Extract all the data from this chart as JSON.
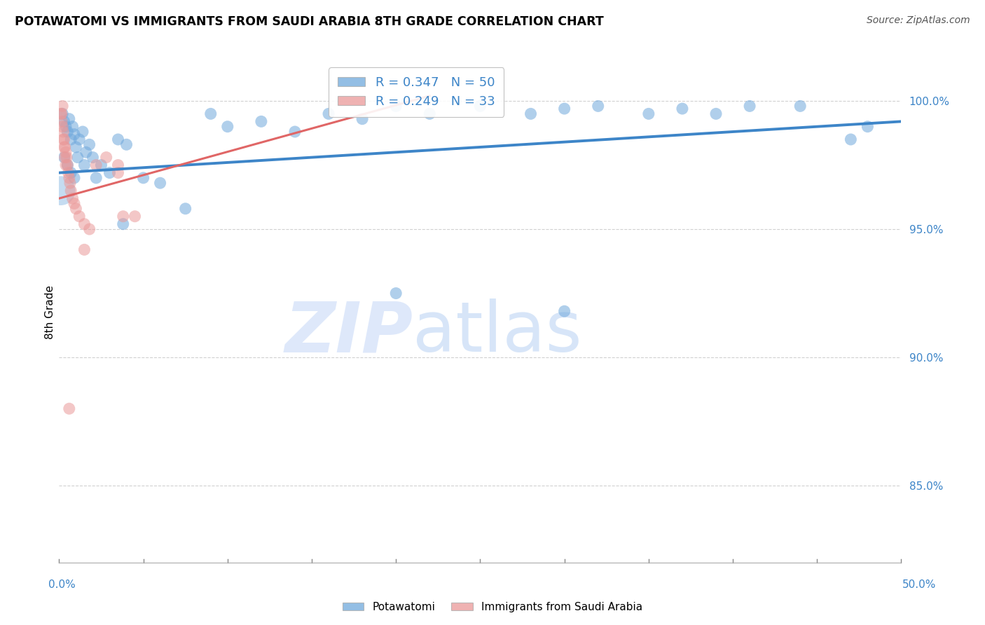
{
  "title": "POTAWATOMI VS IMMIGRANTS FROM SAUDI ARABIA 8TH GRADE CORRELATION CHART",
  "source": "Source: ZipAtlas.com",
  "ylabel": "8th Grade",
  "ylim": [
    82.0,
    101.5
  ],
  "xlim": [
    0.0,
    50.0
  ],
  "yticks_right": [
    100.0,
    95.0,
    90.0,
    85.0
  ],
  "blue_label": "Potawatomi",
  "pink_label": "Immigrants from Saudi Arabia",
  "blue_R": "0.347",
  "blue_N": 50,
  "pink_R": "0.249",
  "pink_N": 33,
  "blue_color": "#6fa8dc",
  "pink_color": "#ea9999",
  "blue_line_color": "#3d85c8",
  "pink_line_color": "#e06666",
  "watermark_zip": "ZIP",
  "watermark_atlas": "atlas",
  "watermark_color": "#c9daf8",
  "blue_points_x": [
    0.2,
    0.3,
    0.4,
    0.5,
    0.6,
    0.7,
    0.8,
    0.9,
    1.0,
    1.2,
    1.4,
    1.6,
    1.8,
    2.0,
    2.5,
    3.0,
    3.5,
    4.0,
    5.0,
    6.0,
    7.5,
    10.0,
    12.0,
    14.0,
    16.0,
    18.0,
    20.0,
    22.0,
    25.0,
    28.0,
    30.0,
    32.0,
    35.0,
    37.0,
    39.0,
    41.0,
    44.0,
    47.0,
    0.3,
    0.5,
    0.7,
    0.9,
    1.1,
    1.5,
    2.2,
    3.8,
    9.0,
    20.0,
    30.0,
    48.0
  ],
  "blue_points_y": [
    99.5,
    99.2,
    99.0,
    98.8,
    99.3,
    98.5,
    99.0,
    98.7,
    98.2,
    98.5,
    98.8,
    98.0,
    98.3,
    97.8,
    97.5,
    97.2,
    98.5,
    98.3,
    97.0,
    96.8,
    95.8,
    99.0,
    99.2,
    98.8,
    99.5,
    99.3,
    99.8,
    99.5,
    99.8,
    99.5,
    99.7,
    99.8,
    99.5,
    99.7,
    99.5,
    99.8,
    99.8,
    98.5,
    97.8,
    97.5,
    97.2,
    97.0,
    97.8,
    97.5,
    97.0,
    95.2,
    99.5,
    92.5,
    91.8,
    99.0
  ],
  "blue_large_x": 0.1,
  "blue_large_y": 96.5,
  "blue_large_size": 900,
  "pink_points_x": [
    0.1,
    0.15,
    0.2,
    0.25,
    0.3,
    0.35,
    0.4,
    0.45,
    0.5,
    0.55,
    0.6,
    0.65,
    0.7,
    0.8,
    0.9,
    1.0,
    1.2,
    1.5,
    1.8,
    2.2,
    2.8,
    3.5,
    4.5,
    0.2,
    0.3,
    0.4,
    0.15,
    0.25,
    0.35,
    1.5,
    3.5,
    3.8,
    0.6
  ],
  "pink_points_y": [
    99.5,
    99.2,
    99.0,
    98.8,
    98.5,
    98.2,
    98.0,
    97.8,
    97.5,
    97.2,
    97.0,
    96.8,
    96.5,
    96.2,
    96.0,
    95.8,
    95.5,
    95.2,
    95.0,
    97.5,
    97.8,
    97.5,
    95.5,
    99.8,
    98.2,
    97.5,
    99.5,
    98.5,
    97.8,
    94.2,
    97.2,
    95.5,
    88.0
  ],
  "blue_trend_x": [
    0.0,
    50.0
  ],
  "blue_trend_y": [
    97.2,
    99.2
  ],
  "pink_trend_x": [
    0.0,
    22.0
  ],
  "pink_trend_y": [
    96.2,
    100.2
  ],
  "watermark": "ZIPatlas"
}
